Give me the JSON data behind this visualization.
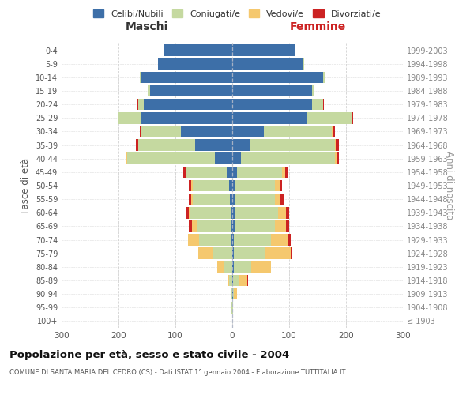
{
  "age_groups": [
    "100+",
    "95-99",
    "90-94",
    "85-89",
    "80-84",
    "75-79",
    "70-74",
    "65-69",
    "60-64",
    "55-59",
    "50-54",
    "45-49",
    "40-44",
    "35-39",
    "30-34",
    "25-29",
    "20-24",
    "15-19",
    "10-14",
    "5-9",
    "0-4"
  ],
  "birth_years": [
    "≤ 1903",
    "1904-1908",
    "1909-1913",
    "1914-1918",
    "1919-1923",
    "1924-1928",
    "1929-1933",
    "1934-1938",
    "1939-1943",
    "1944-1948",
    "1949-1953",
    "1954-1958",
    "1959-1963",
    "1964-1968",
    "1969-1973",
    "1974-1978",
    "1979-1983",
    "1984-1988",
    "1989-1993",
    "1994-1998",
    "1999-2003"
  ],
  "male": {
    "celibi": [
      0,
      0,
      0,
      0,
      0,
      0,
      3,
      3,
      3,
      4,
      5,
      10,
      30,
      65,
      90,
      160,
      155,
      145,
      160,
      130,
      120
    ],
    "coniugati": [
      0,
      1,
      2,
      5,
      15,
      35,
      55,
      60,
      70,
      65,
      65,
      70,
      155,
      100,
      70,
      40,
      10,
      3,
      2,
      0,
      0
    ],
    "vedovi": [
      0,
      0,
      1,
      3,
      12,
      25,
      20,
      8,
      4,
      3,
      2,
      1,
      1,
      0,
      0,
      0,
      0,
      0,
      0,
      0,
      0
    ],
    "divorziati": [
      0,
      0,
      0,
      0,
      0,
      0,
      0,
      5,
      5,
      4,
      4,
      5,
      2,
      5,
      2,
      1,
      1,
      0,
      0,
      0,
      0
    ]
  },
  "female": {
    "nubili": [
      0,
      0,
      1,
      2,
      3,
      3,
      3,
      5,
      5,
      5,
      5,
      8,
      15,
      30,
      55,
      130,
      140,
      140,
      160,
      125,
      110
    ],
    "coniugate": [
      0,
      1,
      2,
      10,
      30,
      55,
      65,
      70,
      75,
      70,
      70,
      80,
      165,
      150,
      120,
      80,
      20,
      5,
      3,
      2,
      1
    ],
    "vedove": [
      0,
      1,
      5,
      15,
      35,
      45,
      30,
      20,
      15,
      10,
      8,
      5,
      3,
      2,
      1,
      0,
      0,
      0,
      0,
      0,
      0
    ],
    "divorziate": [
      0,
      0,
      0,
      1,
      0,
      2,
      5,
      5,
      5,
      5,
      5,
      5,
      5,
      5,
      5,
      2,
      1,
      0,
      0,
      0,
      0
    ]
  },
  "colors": {
    "celibi_nubili": "#3d6fa8",
    "coniugati": "#c5d9a0",
    "vedovi": "#f5c86e",
    "divorziati": "#cc2222"
  },
  "title": "Popolazione per età, sesso e stato civile - 2004",
  "subtitle": "COMUNE DI SANTA MARIA DEL CEDRO (CS) - Dati ISTAT 1° gennaio 2004 - Elaborazione TUTTITALIA.IT",
  "xlabel_left": "Maschi",
  "xlabel_right": "Femmine",
  "ylabel_left": "Fasce di età",
  "ylabel_right": "Anni di nascita",
  "legend_labels": [
    "Celibi/Nubili",
    "Coniugati/e",
    "Vedovi/e",
    "Divorziati/e"
  ],
  "xlim": 300,
  "background_color": "#ffffff",
  "grid_color": "#cccccc"
}
